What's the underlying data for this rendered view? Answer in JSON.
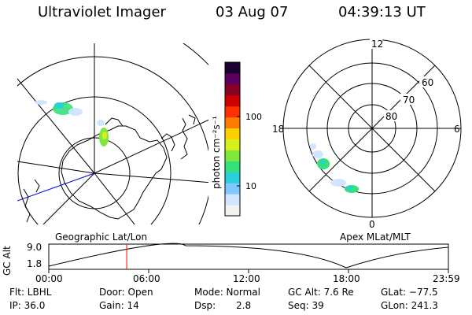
{
  "header": {
    "instrument": "Ultraviolet Imager",
    "date": "03 Aug 07",
    "time": "04:39:13 UT"
  },
  "colorbar": {
    "unit_label": "photon cm⁻²s⁻¹",
    "ticks": [
      "100",
      "10"
    ],
    "colors": [
      "#f2f2f2",
      "#d0e6ff",
      "#7fc8ff",
      "#28d0d8",
      "#36e07a",
      "#7fe83a",
      "#d6f01c",
      "#ffd000",
      "#ff7a00",
      "#ff3000",
      "#cc0000",
      "#880022",
      "#5a0060",
      "#1a0030"
    ]
  },
  "polar_plot": {
    "mlt_labels": [
      "12",
      "18",
      "6",
      "0"
    ],
    "lat_labels": [
      "60",
      "70",
      "80"
    ]
  },
  "timeline": {
    "geo_label": "Geographic Lat/Lon",
    "apex_label": "Apex MLat/MLT",
    "axis_label": "GC Alt",
    "alt_max": "9.0",
    "alt_min": "1.8",
    "time_ticks": [
      "00:00",
      "06:00",
      "12:00",
      "18:00",
      "23:59"
    ],
    "current_time_fraction": 0.195,
    "marker_color": "#ff0000"
  },
  "info": {
    "flt": "Flt: LBHL",
    "door": "Door: Open",
    "mode": "Mode: Normal",
    "gcalt": "GC Alt: 7.6 Re",
    "glat": "GLat: −77.5",
    "ip": "IP: 36.0",
    "gain": "Gain: 14",
    "dsp_label": "Dsp:",
    "dsp_value": "2.8",
    "seq": "Seq: 39",
    "glon": "GLon: 241.3"
  }
}
